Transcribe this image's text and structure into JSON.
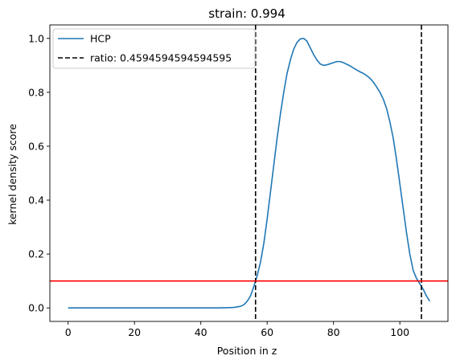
{
  "chart_data": {
    "type": "line",
    "title": "strain: 0.994",
    "xlabel": "Position in z",
    "ylabel": "kernel density score",
    "xlim": [
      -5.5,
      114.5
    ],
    "ylim": [
      -0.05,
      1.05
    ],
    "xticks": [
      0,
      20,
      40,
      60,
      80,
      100
    ],
    "xtick_labels": [
      "0",
      "20",
      "40",
      "60",
      "80",
      "100"
    ],
    "yticks": [
      0.0,
      0.2,
      0.4,
      0.6,
      0.8,
      1.0
    ],
    "ytick_labels": [
      "0.0",
      "0.2",
      "0.4",
      "0.6",
      "0.8",
      "1.0"
    ],
    "grid": false,
    "legend_position": "top-left",
    "series": [
      {
        "name": "HCP",
        "color": "#1f77b4",
        "style": "solid",
        "x": [
          0,
          10,
          20,
          30,
          40,
          45,
          48,
          50,
          52,
          53,
          54,
          55,
          56,
          56.5,
          57,
          58,
          59,
          60,
          61,
          62,
          63,
          64,
          65,
          66,
          67,
          68,
          69,
          70,
          71,
          72,
          73,
          74,
          75,
          76,
          77,
          78,
          79,
          80,
          81,
          82,
          83,
          84,
          85,
          86,
          87,
          88,
          89,
          90,
          91,
          92,
          93,
          94,
          95,
          96,
          97,
          98,
          99,
          100,
          101,
          102,
          103,
          104,
          105,
          106,
          106.5,
          107,
          108,
          109
        ],
        "y": [
          0.0,
          0.0,
          0.0,
          0.0,
          0.0,
          0.0,
          0.001,
          0.002,
          0.006,
          0.012,
          0.025,
          0.045,
          0.08,
          0.1,
          0.12,
          0.17,
          0.24,
          0.33,
          0.43,
          0.53,
          0.63,
          0.72,
          0.8,
          0.87,
          0.92,
          0.96,
          0.985,
          0.998,
          1.0,
          0.99,
          0.965,
          0.94,
          0.92,
          0.905,
          0.9,
          0.902,
          0.906,
          0.91,
          0.914,
          0.914,
          0.91,
          0.904,
          0.898,
          0.89,
          0.883,
          0.876,
          0.87,
          0.862,
          0.852,
          0.838,
          0.82,
          0.8,
          0.775,
          0.74,
          0.69,
          0.63,
          0.55,
          0.46,
          0.37,
          0.28,
          0.2,
          0.14,
          0.11,
          0.09,
          0.08,
          0.07,
          0.045,
          0.025
        ]
      },
      {
        "name": "ratio: 0.4594594594594595",
        "color": "#000000",
        "style": "dashed",
        "vlines": [
          56.5,
          106.5
        ]
      }
    ],
    "threshold": {
      "y": 0.1,
      "color": "#ff0000"
    }
  }
}
